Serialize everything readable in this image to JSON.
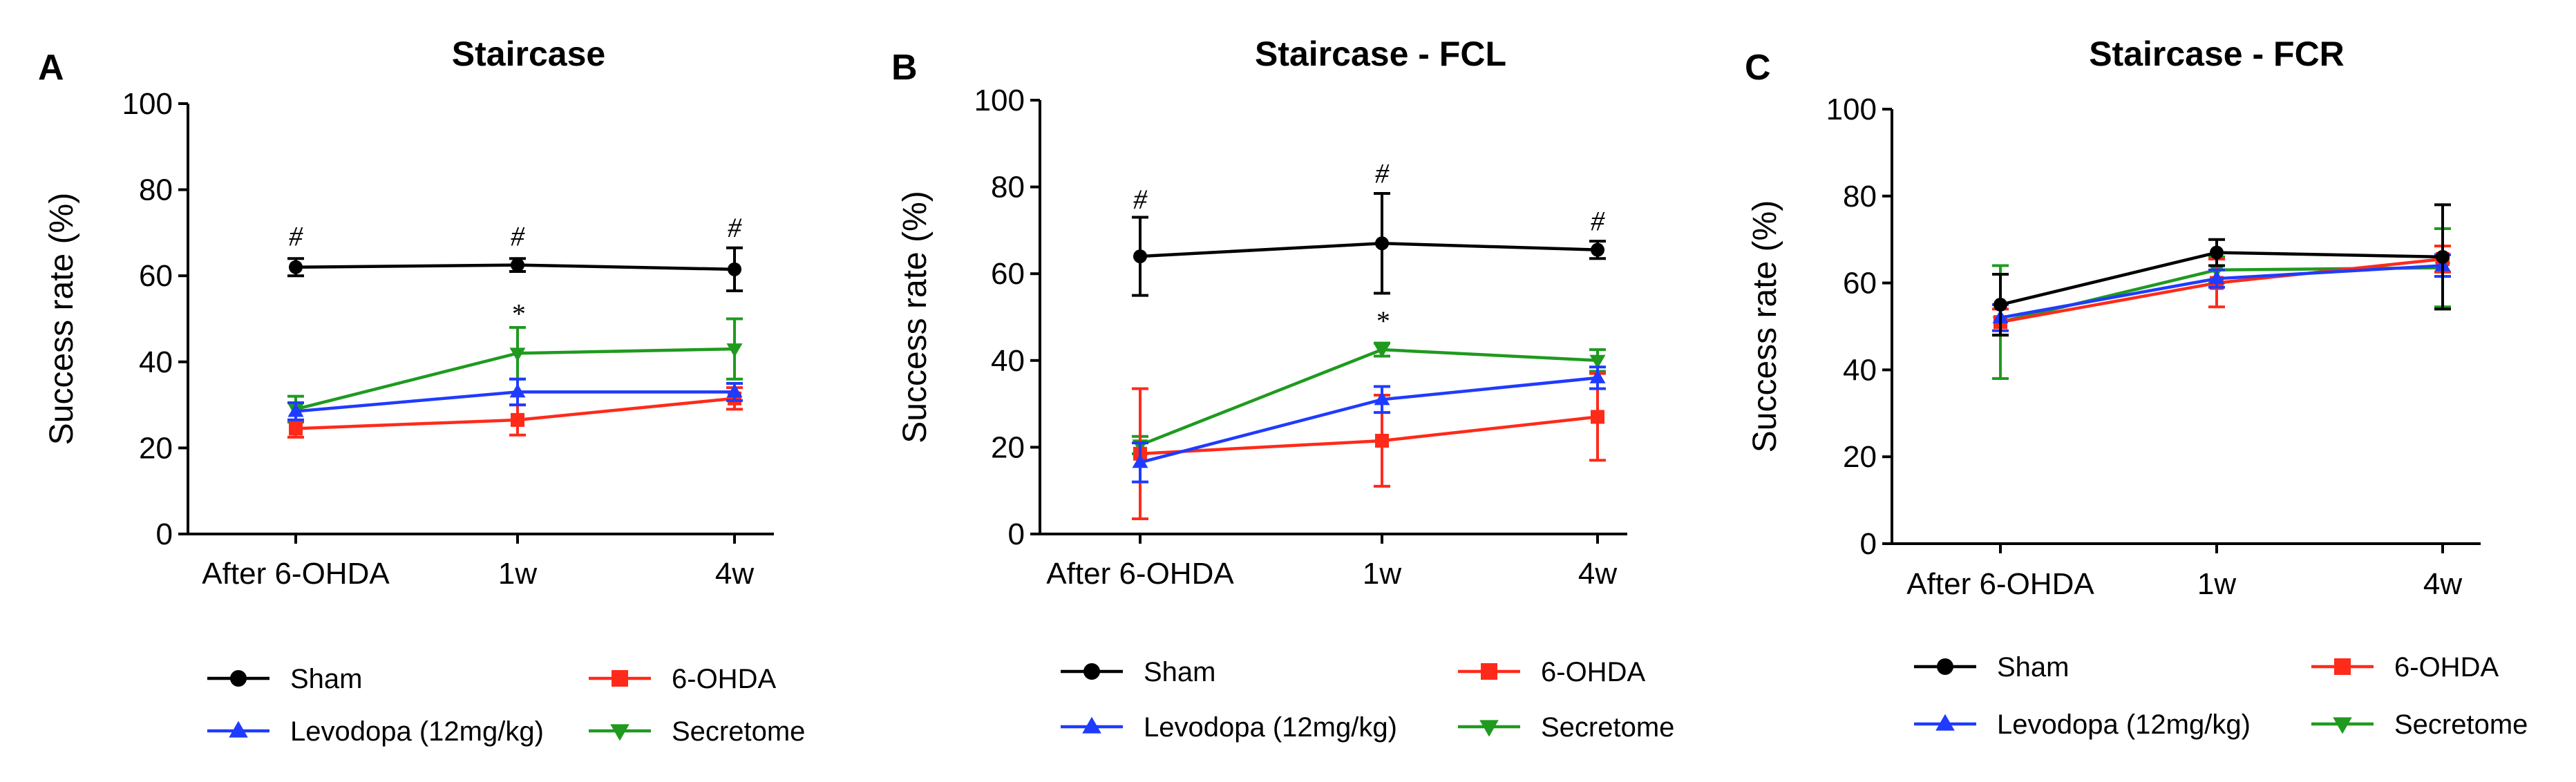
{
  "colors": {
    "Sham": "#000000",
    "6-OHDA": "#ff2a1a",
    "Levodopa (12mg/kg)": "#1f3bff",
    "Secretome": "#1f9a1f"
  },
  "legend": {
    "sham": "Sham",
    "ohda": "6-OHDA",
    "levodopa": "Levodopa (12mg/kg)",
    "secretome": "Secretome"
  },
  "chart_data": [
    {
      "type": "line",
      "panel": "A",
      "title": "Staircase",
      "ylabel": "Success rate (%)",
      "xlabel": "",
      "ylim": [
        0,
        100
      ],
      "yticks": [
        "0",
        "20",
        "40",
        "60",
        "80",
        "100"
      ],
      "categories": [
        "After 6-OHDA",
        "1w",
        "4w"
      ],
      "series": [
        {
          "name": "Sham",
          "values": [
            62,
            62.5,
            61.5
          ],
          "errors": [
            2,
            1.5,
            5
          ]
        },
        {
          "name": "6-OHDA",
          "values": [
            24.5,
            26.5,
            31.5
          ],
          "errors": [
            2,
            3.5,
            2.5
          ]
        },
        {
          "name": "Levodopa (12mg/kg)",
          "values": [
            28.5,
            33,
            33
          ],
          "errors": [
            2,
            3,
            2
          ]
        },
        {
          "name": "Secretome",
          "values": [
            29,
            42,
            43
          ],
          "errors": [
            3,
            6,
            7
          ]
        }
      ],
      "annotations": [
        {
          "text": "#",
          "category": 0,
          "y": 67
        },
        {
          "text": "#",
          "category": 1,
          "y": 67
        },
        {
          "text": "#",
          "category": 2,
          "y": 69
        },
        {
          "text": "*",
          "category": 1,
          "y": 49
        }
      ]
    },
    {
      "type": "line",
      "panel": "B",
      "title": "Staircase - FCL",
      "ylabel": "Success rate (%)",
      "xlabel": "",
      "ylim": [
        0,
        100
      ],
      "yticks": [
        "0",
        "20",
        "40",
        "60",
        "80",
        "100"
      ],
      "categories": [
        "After 6-OHDA",
        "1w",
        "4w"
      ],
      "series": [
        {
          "name": "Sham",
          "values": [
            64,
            67,
            65.5
          ],
          "errors": [
            9,
            11.5,
            2
          ]
        },
        {
          "name": "6-OHDA",
          "values": [
            18.5,
            21.5,
            27
          ],
          "errors": [
            15,
            10.5,
            10
          ]
        },
        {
          "name": "Levodopa (12mg/kg)",
          "values": [
            16.5,
            31,
            36
          ],
          "errors": [
            4.5,
            3,
            2.5
          ]
        },
        {
          "name": "Secretome",
          "values": [
            20.5,
            42.5,
            40
          ],
          "errors": [
            2,
            1.5,
            2.5
          ]
        }
      ],
      "annotations": [
        {
          "text": "#",
          "category": 0,
          "y": 75
        },
        {
          "text": "#",
          "category": 1,
          "y": 81
        },
        {
          "text": "#",
          "category": 2,
          "y": 70
        },
        {
          "text": "*",
          "category": 1,
          "y": 47
        }
      ]
    },
    {
      "type": "line",
      "panel": "C",
      "title": "Staircase - FCR",
      "ylabel": "Success rate (%)",
      "xlabel": "",
      "ylim": [
        0,
        100
      ],
      "yticks": [
        "0",
        "20",
        "40",
        "60",
        "80",
        "100"
      ],
      "categories": [
        "After 6-OHDA",
        "1w",
        "4w"
      ],
      "series": [
        {
          "name": "Sham",
          "values": [
            55,
            67,
            66
          ],
          "errors": [
            7,
            3,
            12
          ]
        },
        {
          "name": "6-OHDA",
          "values": [
            51,
            60,
            65.5
          ],
          "errors": [
            3,
            5.5,
            3
          ]
        },
        {
          "name": "Levodopa (12mg/kg)",
          "values": [
            52,
            61,
            64
          ],
          "errors": [
            3,
            2,
            2.5
          ]
        },
        {
          "name": "Secretome",
          "values": [
            51,
            63,
            63.5
          ],
          "errors": [
            13,
            3,
            9
          ]
        }
      ],
      "annotations": []
    }
  ]
}
